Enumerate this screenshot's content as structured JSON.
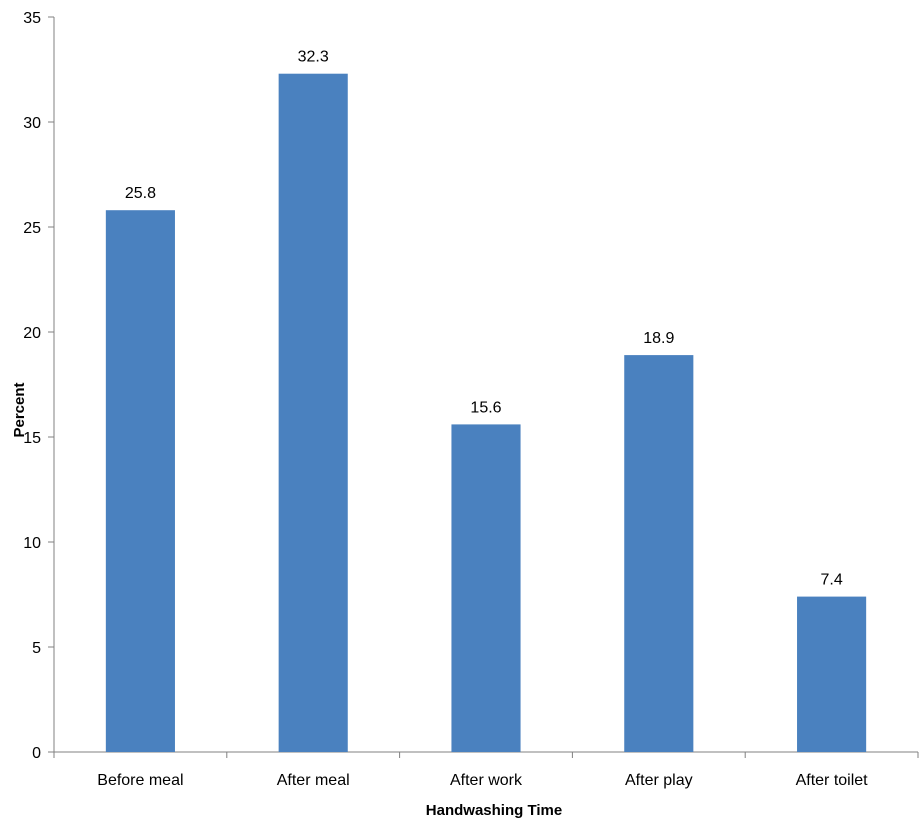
{
  "chart_data": {
    "type": "bar",
    "title": "",
    "xlabel": "Handwashing Time",
    "ylabel": "Percent",
    "categories": [
      "Before meal",
      "After meal",
      "After work",
      "After play",
      "After toilet"
    ],
    "values": [
      25.8,
      32.3,
      15.6,
      18.9,
      7.4
    ],
    "value_labels": [
      "25.8",
      "32.3",
      "15.6",
      "18.9",
      "7.4"
    ],
    "ylim": [
      0,
      35
    ],
    "yticks": [
      0,
      5,
      10,
      15,
      20,
      25,
      30,
      35
    ],
    "grid": false,
    "legend": "none",
    "bar_color": "#4a81bf"
  }
}
